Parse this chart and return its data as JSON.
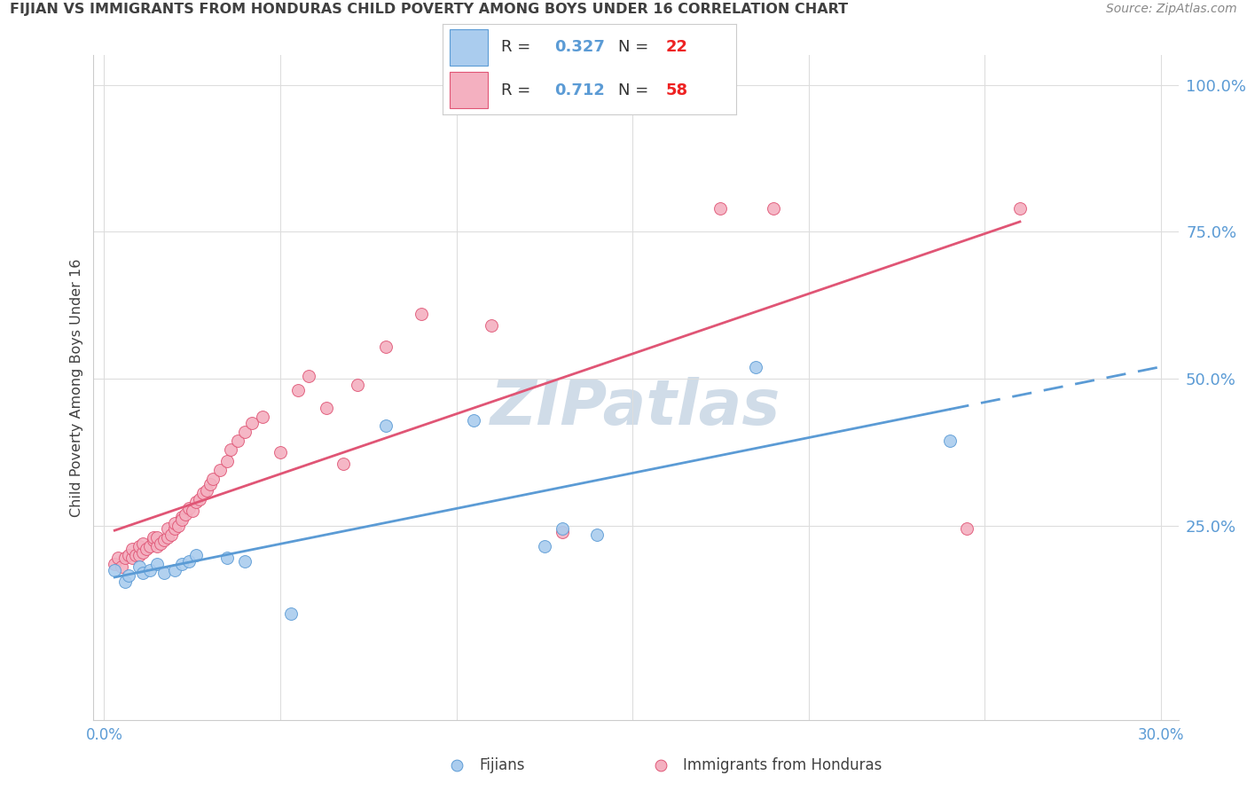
{
  "title": "FIJIAN VS IMMIGRANTS FROM HONDURAS CHILD POVERTY AMONG BOYS UNDER 16 CORRELATION CHART",
  "source": "Source: ZipAtlas.com",
  "ylabel": "Child Poverty Among Boys Under 16",
  "xlim": [
    -0.003,
    0.305
  ],
  "ylim": [
    -0.08,
    1.05
  ],
  "xtick_vals": [
    0.0,
    0.05,
    0.1,
    0.15,
    0.2,
    0.25,
    0.3
  ],
  "xtick_labels": [
    "0.0%",
    "",
    "",
    "",
    "",
    "",
    "30.0%"
  ],
  "ytick_grid_vals": [
    0.25,
    0.5,
    0.75,
    1.0
  ],
  "ytick_right_vals": [
    0.25,
    0.5,
    0.75,
    1.0
  ],
  "ytick_right_labels": [
    "25.0%",
    "50.0%",
    "75.0%",
    "100.0%"
  ],
  "background_color": "#ffffff",
  "grid_color": "#dddddd",
  "axis_label_color": "#5b9bd5",
  "title_color": "#404040",
  "watermark": "ZIPatlas",
  "watermark_color": "#d0dce8",
  "fijians_color": "#aaccee",
  "fijians_edge_color": "#5b9bd5",
  "honduras_color": "#f4b0c0",
  "honduras_edge_color": "#e05575",
  "fijians_line_color": "#5b9bd5",
  "honduras_line_color": "#e05575",
  "fijians_R": 0.327,
  "fijians_N": 22,
  "honduras_R": 0.712,
  "honduras_N": 58,
  "fijians_x": [
    0.003,
    0.006,
    0.007,
    0.01,
    0.011,
    0.013,
    0.015,
    0.017,
    0.02,
    0.022,
    0.024,
    0.026,
    0.035,
    0.04,
    0.053,
    0.08,
    0.105,
    0.125,
    0.13,
    0.14,
    0.185,
    0.24
  ],
  "fijians_y": [
    0.175,
    0.155,
    0.165,
    0.18,
    0.17,
    0.175,
    0.185,
    0.17,
    0.175,
    0.185,
    0.19,
    0.2,
    0.195,
    0.19,
    0.1,
    0.42,
    0.43,
    0.215,
    0.245,
    0.235,
    0.52,
    0.395
  ],
  "honduras_x": [
    0.003,
    0.004,
    0.005,
    0.006,
    0.007,
    0.008,
    0.008,
    0.009,
    0.01,
    0.01,
    0.011,
    0.011,
    0.012,
    0.013,
    0.014,
    0.014,
    0.015,
    0.015,
    0.016,
    0.017,
    0.018,
    0.018,
    0.019,
    0.02,
    0.02,
    0.021,
    0.022,
    0.022,
    0.023,
    0.024,
    0.025,
    0.026,
    0.027,
    0.028,
    0.029,
    0.03,
    0.031,
    0.033,
    0.035,
    0.036,
    0.038,
    0.04,
    0.042,
    0.045,
    0.05,
    0.055,
    0.058,
    0.063,
    0.068,
    0.072,
    0.08,
    0.09,
    0.11,
    0.13,
    0.175,
    0.19,
    0.245,
    0.26
  ],
  "honduras_y": [
    0.185,
    0.195,
    0.18,
    0.195,
    0.2,
    0.195,
    0.21,
    0.2,
    0.2,
    0.215,
    0.205,
    0.22,
    0.21,
    0.215,
    0.225,
    0.23,
    0.215,
    0.23,
    0.22,
    0.225,
    0.23,
    0.245,
    0.235,
    0.245,
    0.255,
    0.25,
    0.265,
    0.26,
    0.27,
    0.28,
    0.275,
    0.29,
    0.295,
    0.305,
    0.31,
    0.32,
    0.33,
    0.345,
    0.36,
    0.38,
    0.395,
    0.41,
    0.425,
    0.435,
    0.375,
    0.48,
    0.505,
    0.45,
    0.355,
    0.49,
    0.555,
    0.61,
    0.59,
    0.24,
    0.79,
    0.79,
    0.245,
    0.79
  ],
  "legend_fijian_label": "Fijians",
  "legend_honduras_label": "Immigrants from Honduras"
}
